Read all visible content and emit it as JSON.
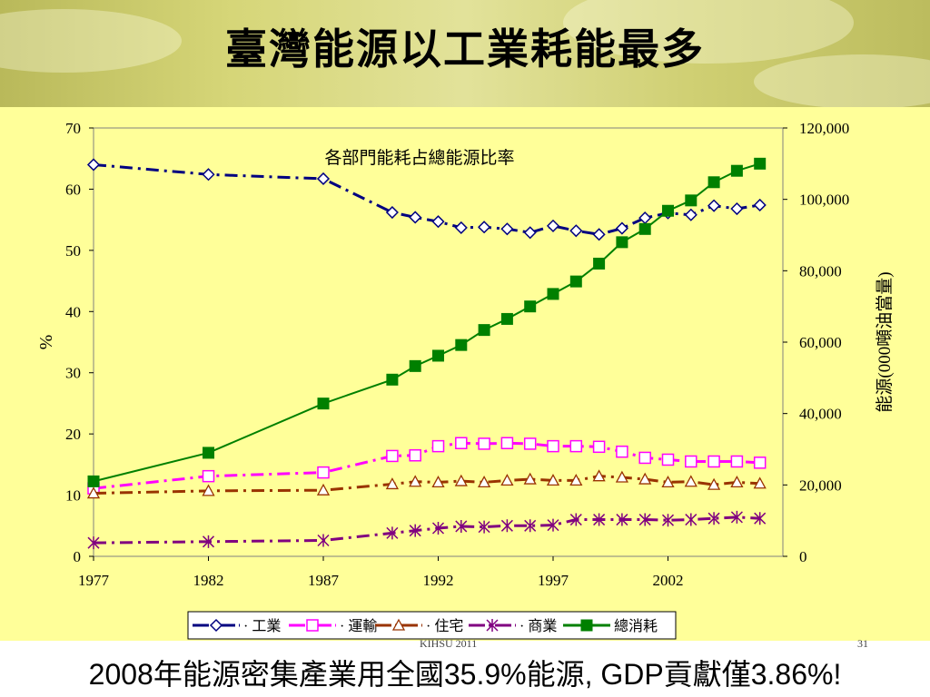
{
  "slide": {
    "title": "臺灣能源以工業耗能最多",
    "footer": "KIHSU 2011",
    "page_number": "31",
    "bottom_note": "2008年能源密集產業用全國35.9%能源, GDP貢獻僅3.86%!"
  },
  "colors": {
    "chart_bg": "#ffff99",
    "industry": "#000080",
    "transport": "#ff00ff",
    "residential": "#993300",
    "commercial": "#800080",
    "total": "#008000"
  },
  "chart_data": {
    "type": "line",
    "title": "各部門能耗占總能源比率",
    "xlabel": "",
    "ylabel": "%",
    "y2label": "能源(000噸油當量)",
    "xlim": [
      1977,
      2007
    ],
    "ylim": [
      0,
      70
    ],
    "y2lim": [
      0,
      120000
    ],
    "x_ticks": [
      "1977",
      "1982",
      "1987",
      "1992",
      "1997",
      "2002"
    ],
    "y_ticks": [
      "0",
      "10",
      "20",
      "30",
      "40",
      "50",
      "60",
      "70"
    ],
    "y2_ticks": [
      "0",
      "20,000",
      "40,000",
      "60,000",
      "80,000",
      "100,000",
      "120,000"
    ],
    "grid": false,
    "legend": "bottom",
    "series": [
      {
        "name": "工業",
        "axis": "left",
        "marker": "diamond",
        "colorKey": "industry",
        "dash": "14 6 3 6",
        "x": [
          1977,
          1982,
          1987,
          1990,
          1991,
          1992,
          1993,
          1994,
          1995,
          1996,
          1997,
          1998,
          1999,
          2000,
          2001,
          2002,
          2003,
          2004,
          2005,
          2006
        ],
        "y": [
          64,
          62.4,
          61.7,
          56.2,
          55.4,
          54.7,
          53.7,
          53.8,
          53.5,
          52.9,
          54,
          53.2,
          52.6,
          53.6,
          55.3,
          56.1,
          55.8,
          57.3,
          56.8,
          57.4
        ]
      },
      {
        "name": "運輸",
        "axis": "left",
        "marker": "square",
        "colorKey": "transport",
        "dash": "14 6 3 6",
        "x": [
          1977,
          1982,
          1987,
          1990,
          1991,
          1992,
          1993,
          1994,
          1995,
          1996,
          1997,
          1998,
          1999,
          2000,
          2001,
          2002,
          2003,
          2004,
          2005,
          2006
        ],
        "y": [
          11.1,
          13.1,
          13.7,
          16.4,
          16.5,
          18,
          18.5,
          18.4,
          18.5,
          18.4,
          18,
          18,
          17.9,
          17.1,
          16.1,
          15.8,
          15.5,
          15.5,
          15.5,
          15.3
        ]
      },
      {
        "name": "住宅",
        "axis": "left",
        "marker": "triangle",
        "colorKey": "residential",
        "dash": "14 6 3 6",
        "x": [
          1977,
          1982,
          1987,
          1990,
          1991,
          1992,
          1993,
          1994,
          1995,
          1996,
          1997,
          1998,
          1999,
          2000,
          2001,
          2002,
          2003,
          2004,
          2005,
          2006
        ],
        "y": [
          10.3,
          10.7,
          10.8,
          11.8,
          12.2,
          12.1,
          12.3,
          12.1,
          12.4,
          12.6,
          12.4,
          12.4,
          13.1,
          12.9,
          12.6,
          12.1,
          12.2,
          11.7,
          12.1,
          11.9
        ]
      },
      {
        "name": "商業",
        "axis": "left",
        "marker": "star",
        "colorKey": "commercial",
        "dash": "14 6 3 6",
        "x": [
          1977,
          1982,
          1987,
          1990,
          1991,
          1992,
          1993,
          1994,
          1995,
          1996,
          1997,
          1998,
          1999,
          2000,
          2001,
          2002,
          2003,
          2004,
          2005,
          2006
        ],
        "y": [
          2.2,
          2.4,
          2.6,
          3.8,
          4.2,
          4.6,
          4.9,
          4.8,
          5,
          5,
          5.1,
          6,
          6,
          6,
          6,
          5.9,
          6,
          6.2,
          6.4,
          6.2
        ]
      },
      {
        "name": "總消耗",
        "axis": "right",
        "marker": "filled-square",
        "colorKey": "total",
        "dash": "",
        "x": [
          1977,
          1982,
          1987,
          1990,
          1991,
          1992,
          1993,
          1994,
          1995,
          1996,
          1997,
          1998,
          1999,
          2000,
          2001,
          2002,
          2003,
          2004,
          2005,
          2006
        ],
        "y": [
          21000,
          29000,
          42800,
          49500,
          53300,
          56200,
          59200,
          63400,
          66500,
          70000,
          73500,
          77000,
          82000,
          88000,
          91700,
          96800,
          99700,
          104800,
          108000,
          110000
        ]
      }
    ]
  }
}
